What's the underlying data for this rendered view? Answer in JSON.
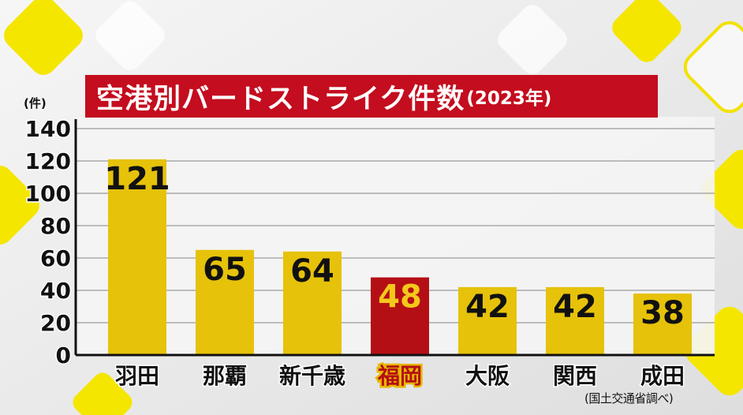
{
  "title": "空港別バードストライク件数",
  "title_suffix": "(2023年)",
  "source_note": "(国土交通省調べ)",
  "colors": {
    "bar": "#e6c20a",
    "highlight_bar": "#b50f16",
    "highlight_value": "#f4c81a",
    "highlight_label_outline": "#e6b800",
    "title_bg": "#c40d1e"
  },
  "chart_data": {
    "type": "bar",
    "categories": [
      "羽田",
      "那覇",
      "新千歳",
      "福岡",
      "大阪",
      "関西",
      "成田"
    ],
    "values": [
      121,
      65,
      64,
      48,
      42,
      42,
      38
    ],
    "highlight_index": 3,
    "ylabel": "(件)",
    "ylim": [
      0,
      140
    ],
    "yticks": [
      0,
      20,
      40,
      60,
      80,
      100,
      120,
      140
    ],
    "grid": true,
    "legend": "none"
  }
}
